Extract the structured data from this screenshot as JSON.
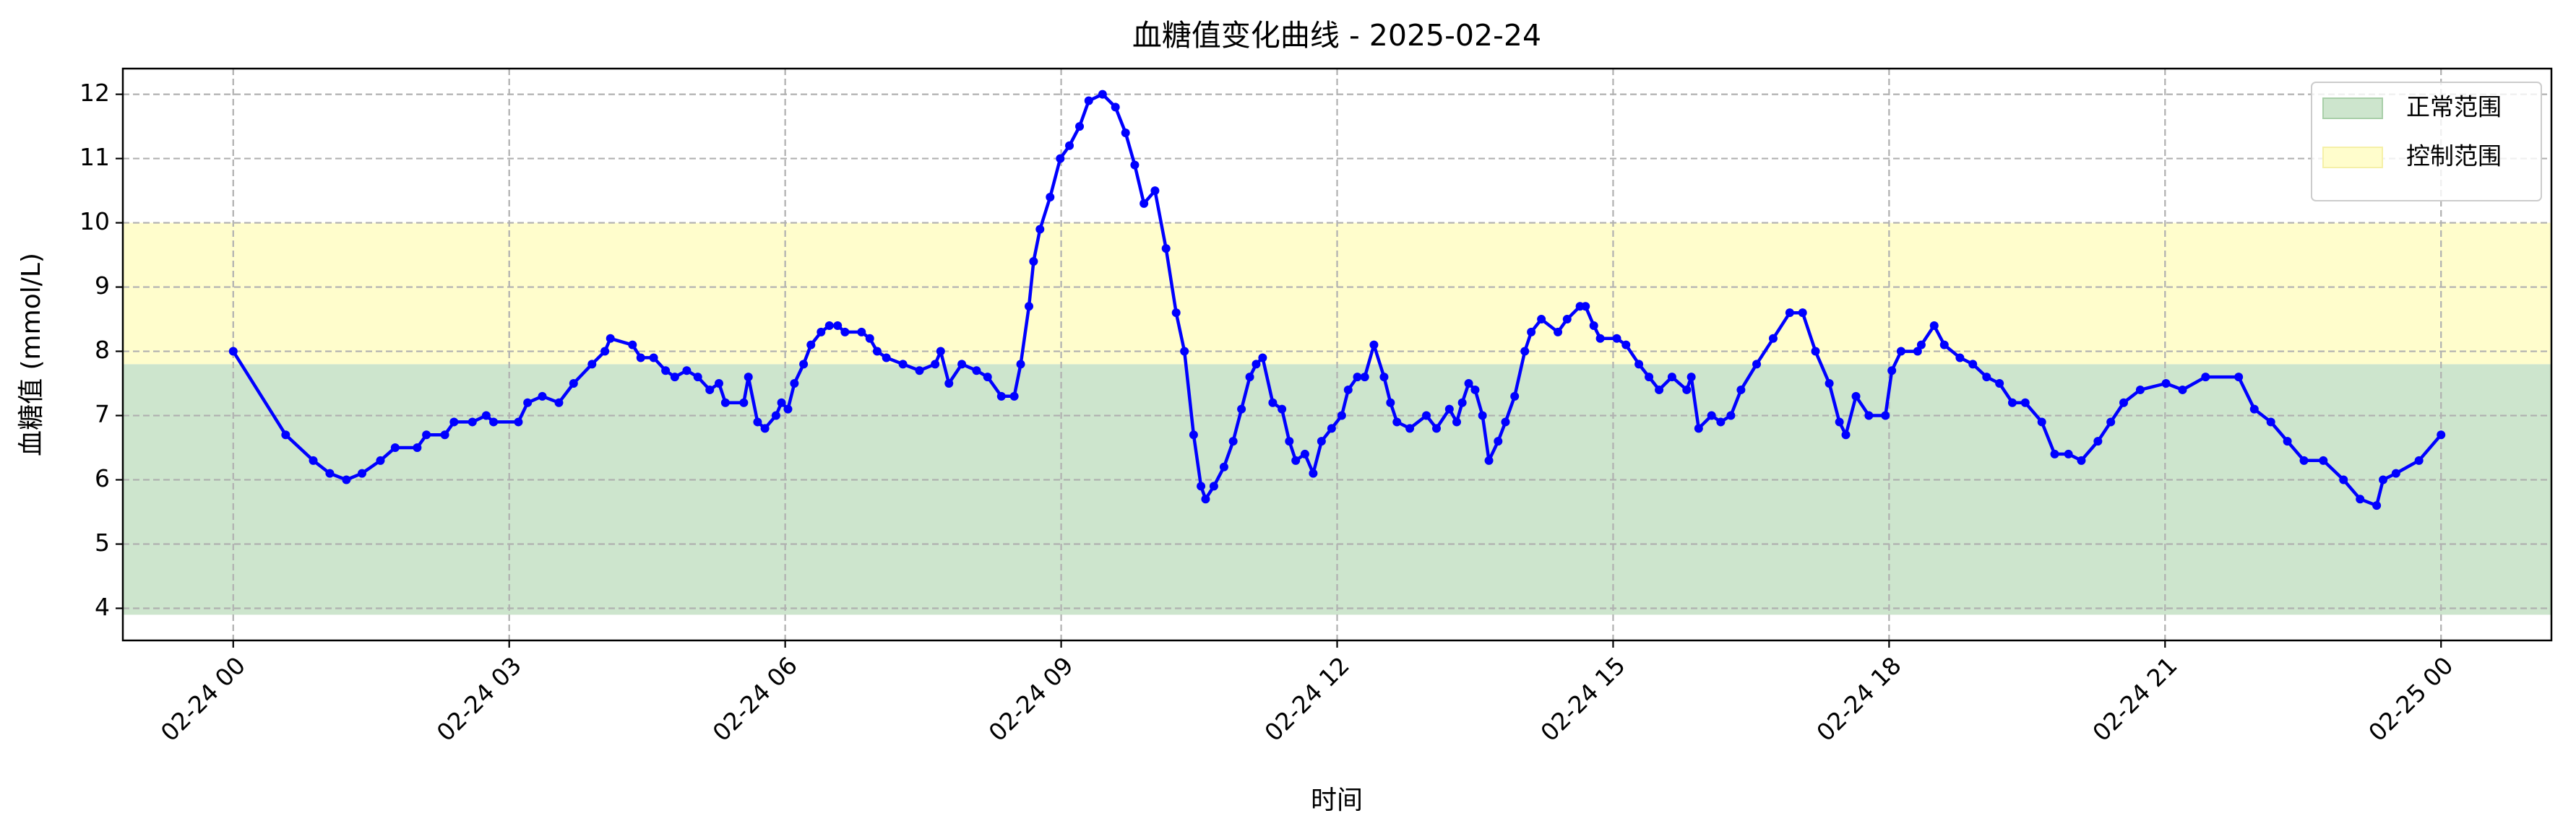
{
  "chart_data": {
    "type": "line",
    "title": "血糖值变化曲线 - 2025-02-24",
    "xlabel": "时间",
    "ylabel": "血糖值 (mmol/L)",
    "color": "#0000ff",
    "x": [
      0,
      0.57,
      0.87,
      1.05,
      1.23,
      1.4,
      1.6,
      1.76,
      2.0,
      2.1,
      2.3,
      2.4,
      2.6,
      2.75,
      2.83,
      3.1,
      3.2,
      3.36,
      3.54,
      3.7,
      3.9,
      4.04,
      4.1,
      4.34,
      4.43,
      4.57,
      4.7,
      4.8,
      4.93,
      5.05,
      5.18,
      5.28,
      5.35,
      5.55,
      5.6,
      5.7,
      5.78,
      5.9,
      5.96,
      6.03,
      6.1,
      6.2,
      6.28,
      6.39,
      6.48,
      6.57,
      6.65,
      6.83,
      6.92,
      7.0,
      7.1,
      7.28,
      7.46,
      7.63,
      7.69,
      7.78,
      7.92,
      8.08,
      8.2,
      8.35,
      8.49,
      8.56,
      8.65,
      8.7,
      8.77,
      8.88,
      8.99,
      9.09,
      9.2,
      9.3,
      9.45,
      9.59,
      9.7,
      9.8,
      9.9,
      10.02,
      10.14,
      10.25,
      10.34,
      10.44,
      10.52,
      10.57,
      10.66,
      10.77,
      10.87,
      10.96,
      11.05,
      11.12,
      11.19,
      11.3,
      11.4,
      11.48,
      11.55,
      11.65,
      11.74,
      11.83,
      11.94,
      12.05,
      12.12,
      12.22,
      12.3,
      12.4,
      12.51,
      12.58,
      12.65,
      12.79,
      12.97,
      13.08,
      13.22,
      13.3,
      13.36,
      13.43,
      13.5,
      13.58,
      13.65,
      13.75,
      13.83,
      13.93,
      14.04,
      14.11,
      14.22,
      14.4,
      14.5,
      14.64,
      14.7,
      14.79,
      14.86,
      15.04,
      15.14,
      15.28,
      15.39,
      15.5,
      15.64,
      15.8,
      15.85,
      15.93,
      16.07,
      16.17,
      16.28,
      16.39,
      16.56,
      16.74,
      16.92,
      17.06,
      17.2,
      17.35,
      17.46,
      17.53,
      17.64,
      17.78,
      17.96,
      18.03,
      18.13,
      18.31,
      18.35,
      18.49,
      18.6,
      18.77,
      18.91,
      19.06,
      19.2,
      19.34,
      19.48,
      19.66,
      19.8,
      19.95,
      20.09,
      20.27,
      20.41,
      20.55,
      20.73,
      21.01,
      21.19,
      21.44,
      21.8,
      21.97,
      22.15,
      22.33,
      22.51,
      22.72,
      22.94,
      23.12,
      23.3,
      23.37,
      23.51,
      23.76,
      24.0
    ],
    "values": [
      8.0,
      6.7,
      6.3,
      6.1,
      6.0,
      6.1,
      6.3,
      6.5,
      6.5,
      6.7,
      6.7,
      6.9,
      6.9,
      7.0,
      6.9,
      6.9,
      7.2,
      7.3,
      7.2,
      7.5,
      7.8,
      8.0,
      8.2,
      8.1,
      7.9,
      7.9,
      7.7,
      7.6,
      7.7,
      7.6,
      7.4,
      7.5,
      7.2,
      7.2,
      7.6,
      6.9,
      6.8,
      7.0,
      7.2,
      7.1,
      7.5,
      7.8,
      8.1,
      8.3,
      8.4,
      8.4,
      8.3,
      8.3,
      8.2,
      8.0,
      7.9,
      7.8,
      7.7,
      7.8,
      8.0,
      7.5,
      7.8,
      7.7,
      7.6,
      7.3,
      7.3,
      7.8,
      8.7,
      9.4,
      9.9,
      10.4,
      11.0,
      11.2,
      11.5,
      11.9,
      12.0,
      11.8,
      11.4,
      10.9,
      10.3,
      10.5,
      9.6,
      8.6,
      8.0,
      6.7,
      5.9,
      5.7,
      5.9,
      6.2,
      6.6,
      7.1,
      7.6,
      7.8,
      7.9,
      7.2,
      7.1,
      6.6,
      6.3,
      6.4,
      6.1,
      6.6,
      6.8,
      7.0,
      7.4,
      7.6,
      7.6,
      8.1,
      7.6,
      7.2,
      6.9,
      6.8,
      7.0,
      6.8,
      7.1,
      6.9,
      7.2,
      7.5,
      7.4,
      7.0,
      6.3,
      6.6,
      6.9,
      7.3,
      8.0,
      8.3,
      8.5,
      8.3,
      8.5,
      8.7,
      8.7,
      8.4,
      8.2,
      8.2,
      8.1,
      7.8,
      7.6,
      7.4,
      7.6,
      7.4,
      7.6,
      6.8,
      7.0,
      6.9,
      7.0,
      7.4,
      7.8,
      8.2,
      8.6,
      8.6,
      8.0,
      7.5,
      6.9,
      6.7,
      7.3,
      7.0,
      7.0,
      7.7,
      8.0,
      8.0,
      8.1,
      8.4,
      8.1,
      7.9,
      7.8,
      7.6,
      7.5,
      7.2,
      7.2,
      6.9,
      6.4,
      6.4,
      6.3,
      6.6,
      6.9,
      7.2,
      7.4,
      7.5,
      7.4,
      7.6,
      7.6,
      7.1,
      6.9,
      6.6,
      6.3,
      6.3,
      6.0,
      5.7,
      5.6,
      6.0,
      6.1,
      6.3,
      6.7
    ],
    "bands": [
      {
        "name": "正常范围",
        "range": [
          3.9,
          7.8
        ],
        "color": "#cde5cd"
      },
      {
        "name": "控制范围",
        "range": [
          7.8,
          10
        ],
        "color": "#fffdcc"
      }
    ],
    "xlim": [
      -1.2,
      25.2
    ],
    "xticks": [
      {
        "value": 0,
        "label": "02-24 00"
      },
      {
        "value": 3,
        "label": "02-24 03"
      },
      {
        "value": 6,
        "label": "02-24 06"
      },
      {
        "value": 9,
        "label": "02-24 09"
      },
      {
        "value": 12,
        "label": "02-24 12"
      },
      {
        "value": 15,
        "label": "02-24 15"
      },
      {
        "value": 18,
        "label": "02-24 18"
      },
      {
        "value": 21,
        "label": "02-24 21"
      },
      {
        "value": 24,
        "label": "02-25 00"
      }
    ],
    "ylim": [
      3.5,
      12.4
    ],
    "yticks": [
      4,
      5,
      6,
      7,
      8,
      9,
      10,
      11,
      12
    ],
    "grid": true,
    "legend": "upper right"
  }
}
